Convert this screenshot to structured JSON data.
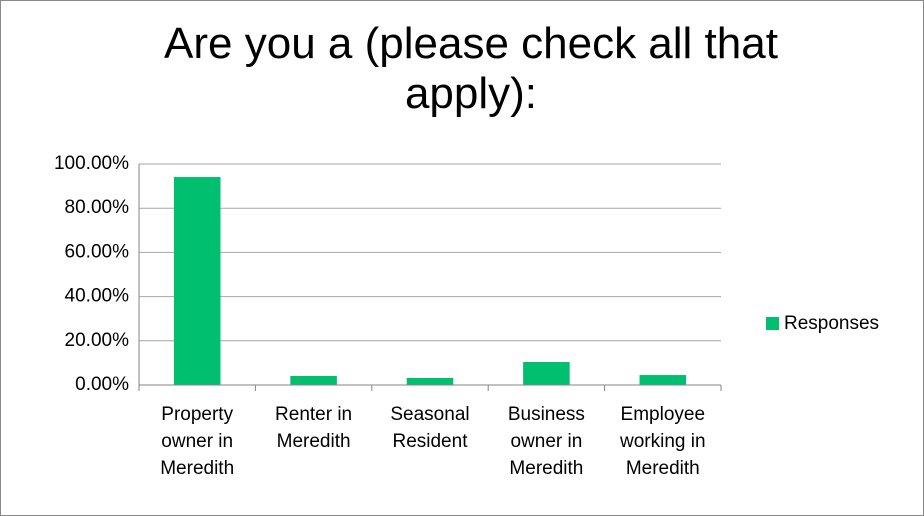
{
  "chart_data": {
    "type": "bar",
    "title": "Are you a (please check all that apply):",
    "categories": [
      "Property owner in Meredith",
      "Renter in Meredith",
      "Seasonal Resident",
      "Business owner in Meredith",
      "Employee working in Meredith"
    ],
    "series": [
      {
        "name": "Responses",
        "color": "#00bf6f",
        "values": [
          94.1,
          4.1,
          3.2,
          10.4,
          4.5
        ]
      }
    ],
    "ylim": [
      0,
      100
    ],
    "yticks": [
      {
        "value": 0,
        "label": "0.00%"
      },
      {
        "value": 20,
        "label": "20.00%"
      },
      {
        "value": 40,
        "label": "40.00%"
      },
      {
        "value": 60,
        "label": "60.00%"
      },
      {
        "value": 80,
        "label": "80.00%"
      },
      {
        "value": 100,
        "label": "100.00%"
      }
    ],
    "grid": true,
    "legend": "right"
  }
}
